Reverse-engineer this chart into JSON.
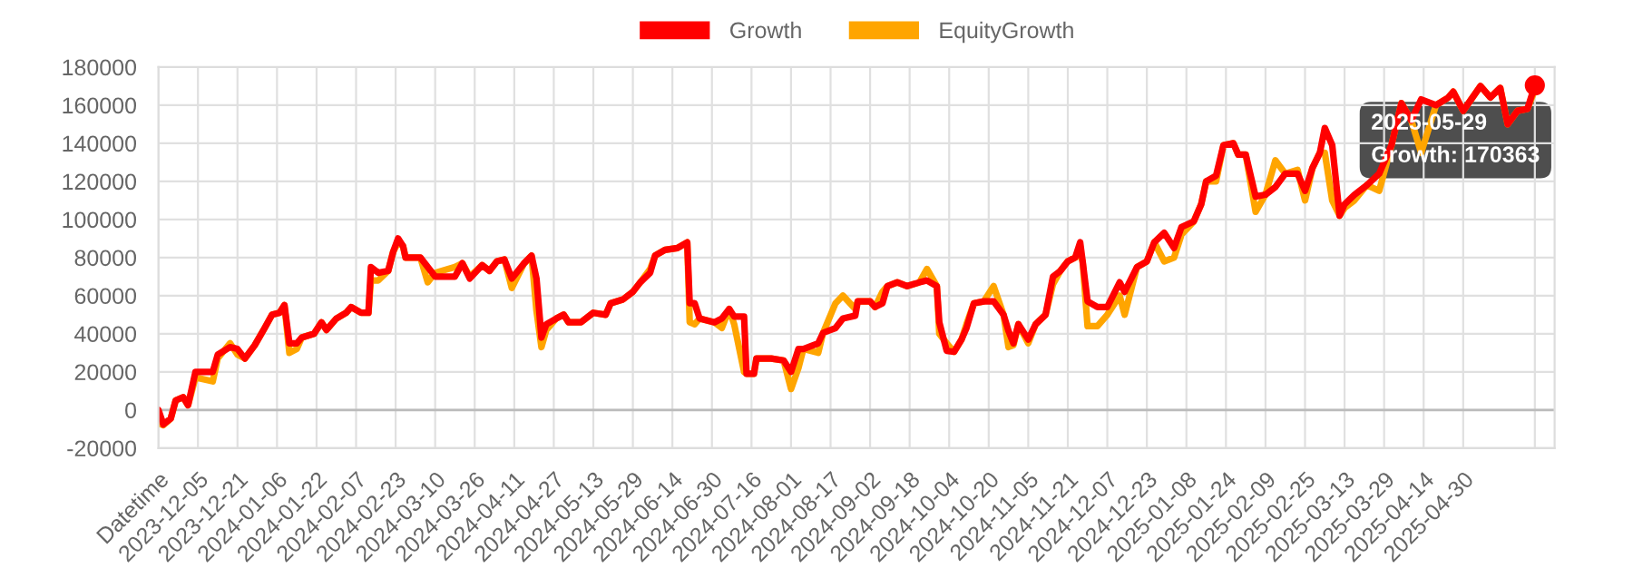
{
  "chart_data": {
    "type": "line",
    "x": [
      "2023-11-19",
      "2023-11-21",
      "2023-11-24",
      "2023-11-26",
      "2023-11-29",
      "2023-12-01",
      "2023-12-04",
      "2023-12-11",
      "2023-12-13",
      "2023-12-18",
      "2023-12-21",
      "2023-12-24",
      "2023-12-28",
      "2024-01-01",
      "2024-01-04",
      "2024-01-07",
      "2024-01-09",
      "2024-01-11",
      "2024-01-14",
      "2024-01-16",
      "2024-01-21",
      "2024-01-24",
      "2024-01-26",
      "2024-01-30",
      "2024-02-03",
      "2024-02-05",
      "2024-02-09",
      "2024-02-12",
      "2024-02-13",
      "2024-02-16",
      "2024-02-20",
      "2024-02-22",
      "2024-02-24",
      "2024-02-26",
      "2024-02-27",
      "2024-03-04",
      "2024-03-07",
      "2024-03-10",
      "2024-03-18",
      "2024-03-21",
      "2024-03-24",
      "2024-03-29",
      "2024-04-01",
      "2024-04-04",
      "2024-04-07",
      "2024-04-10",
      "2024-04-15",
      "2024-04-18",
      "2024-04-20",
      "2024-04-22",
      "2024-04-24",
      "2024-04-28",
      "2024-05-01",
      "2024-05-03",
      "2024-05-08",
      "2024-05-13",
      "2024-05-18",
      "2024-05-20",
      "2024-05-25",
      "2024-05-29",
      "2024-06-01",
      "2024-06-05",
      "2024-06-07",
      "2024-06-11",
      "2024-06-16",
      "2024-06-20",
      "2024-06-21",
      "2024-06-23",
      "2024-06-25",
      "2024-07-01",
      "2024-07-04",
      "2024-07-07",
      "2024-07-09",
      "2024-07-13",
      "2024-07-14",
      "2024-07-17",
      "2024-07-18",
      "2024-07-24",
      "2024-07-29",
      "2024-08-01",
      "2024-08-04",
      "2024-08-06",
      "2024-08-12",
      "2024-08-14",
      "2024-08-19",
      "2024-08-22",
      "2024-08-27",
      "2024-08-28",
      "2024-09-02",
      "2024-09-04",
      "2024-09-07",
      "2024-09-09",
      "2024-09-13",
      "2024-09-17",
      "2024-09-22",
      "2024-09-25",
      "2024-09-29",
      "2024-09-30",
      "2024-10-03",
      "2024-10-06",
      "2024-10-09",
      "2024-10-11",
      "2024-10-14",
      "2024-10-18",
      "2024-10-22",
      "2024-10-26",
      "2024-10-28",
      "2024-10-30",
      "2024-11-01",
      "2024-11-05",
      "2024-11-08",
      "2024-11-12",
      "2024-11-15",
      "2024-11-18",
      "2024-11-21",
      "2024-11-24",
      "2024-11-26",
      "2024-11-27",
      "2024-11-29",
      "2024-12-03",
      "2024-12-07",
      "2024-12-12",
      "2024-12-14",
      "2024-12-19",
      "2024-12-23",
      "2024-12-26",
      "2024-12-30",
      "2025-01-03",
      "2025-01-06",
      "2025-01-11",
      "2025-01-14",
      "2025-01-16",
      "2025-01-20",
      "2025-01-23",
      "2025-01-27",
      "2025-01-29",
      "2025-02-01",
      "2025-02-05",
      "2025-02-09",
      "2025-02-13",
      "2025-02-17",
      "2025-02-22",
      "2025-02-25",
      "2025-02-28",
      "2025-03-03",
      "2025-03-05",
      "2025-03-08",
      "2025-03-11",
      "2025-03-13",
      "2025-03-17",
      "2025-03-22",
      "2025-03-27",
      "2025-04-01",
      "2025-04-05",
      "2025-04-09",
      "2025-04-13",
      "2025-04-19",
      "2025-04-24",
      "2025-04-26",
      "2025-04-30",
      "2025-05-07",
      "2025-05-11",
      "2025-05-15",
      "2025-05-18",
      "2025-05-22",
      "2025-05-26",
      "2025-05-29"
    ],
    "series": [
      {
        "name": "EquityGrowth",
        "color": "#ffa500",
        "values": [
          -7000,
          -8000,
          -4500,
          5000,
          6700,
          2500,
          17000,
          15000,
          27000,
          35000,
          29000,
          27000,
          34000,
          43000,
          50000,
          51000,
          55000,
          30000,
          32000,
          38000,
          40000,
          46000,
          42000,
          48000,
          51000,
          54000,
          51000,
          51000,
          68000,
          68000,
          73000,
          83000,
          88000,
          86000,
          80000,
          80000,
          67000,
          72000,
          75000,
          77000,
          70000,
          76000,
          73000,
          78000,
          79000,
          64000,
          77000,
          81000,
          52000,
          33000,
          42000,
          48000,
          50000,
          46000,
          46000,
          51000,
          50000,
          56000,
          58000,
          62000,
          67000,
          74000,
          81000,
          84000,
          85000,
          88000,
          46000,
          45000,
          48000,
          46000,
          43000,
          53000,
          45000,
          20000,
          19000,
          19000,
          27000,
          27000,
          26000,
          11000,
          22000,
          32000,
          30000,
          40500,
          56000,
          60000,
          53000,
          57000,
          57000,
          54000,
          62000,
          65000,
          67000,
          65000,
          67000,
          74000,
          65000,
          40000,
          35000,
          30500,
          37000,
          45000,
          56000,
          57000,
          65000,
          50000,
          33000,
          34000,
          45000,
          35000,
          45000,
          50000,
          66000,
          73000,
          78000,
          80000,
          82000,
          78000,
          44000,
          44000,
          50000,
          60000,
          50000,
          75000,
          78000,
          88000,
          78000,
          80000,
          92000,
          99000,
          108000,
          120000,
          120000,
          139000,
          140000,
          134000,
          134000,
          104000,
          113000,
          131000,
          124000,
          126000,
          110000,
          127000,
          135000,
          135000,
          110000,
          102000,
          106000,
          110000,
          118000,
          115000,
          139000,
          161000,
          152000,
          135000,
          160000,
          164000,
          167000,
          157000,
          170000,
          164000,
          169000,
          150000,
          157000,
          158000,
          168000
        ]
      },
      {
        "name": "Growth",
        "color": "#ff0000",
        "values": [
          0,
          -7600,
          -4500,
          5000,
          6700,
          2500,
          20000,
          20000,
          29000,
          33000,
          32000,
          27000,
          34000,
          43000,
          50000,
          51000,
          55000,
          35000,
          35000,
          38000,
          40000,
          46000,
          42000,
          48000,
          51000,
          54000,
          51000,
          51000,
          75000,
          72000,
          73000,
          83000,
          90000,
          86000,
          80000,
          80000,
          75000,
          70000,
          70000,
          77000,
          69000,
          76000,
          73000,
          78000,
          79000,
          69000,
          77000,
          81000,
          69000,
          38000,
          45000,
          48000,
          50000,
          46000,
          46000,
          51000,
          50000,
          56000,
          58000,
          62000,
          67000,
          72000,
          81000,
          84000,
          85000,
          88000,
          56000,
          56000,
          48000,
          46000,
          48000,
          53000,
          49000,
          49000,
          19000,
          19000,
          27000,
          27000,
          26000,
          20000,
          32000,
          32000,
          35000,
          40500,
          43000,
          48000,
          49500,
          57000,
          57000,
          54000,
          56000,
          65000,
          67000,
          65000,
          67000,
          68000,
          65000,
          46000,
          31000,
          30500,
          37000,
          43000,
          56000,
          57000,
          57000,
          50000,
          41500,
          35000,
          45000,
          37000,
          45000,
          50000,
          70000,
          73000,
          78000,
          80000,
          88000,
          78000,
          57000,
          54000,
          54000,
          67000,
          62000,
          75000,
          78000,
          88000,
          93000,
          85000,
          96000,
          99000,
          108000,
          120000,
          123000,
          139000,
          140000,
          134000,
          134000,
          112000,
          113000,
          117000,
          124000,
          124000,
          115000,
          127000,
          135000,
          148000,
          139000,
          102000,
          108000,
          113000,
          118000,
          124000,
          139000,
          161000,
          152000,
          163000,
          160000,
          164000,
          167000,
          157000,
          170000,
          164000,
          169000,
          150000,
          157000,
          158000,
          170363
        ]
      }
    ],
    "xlim": [
      "2023-11-19",
      "2025-06-06"
    ],
    "xticks": [
      {
        "value": "2023-11-19",
        "label": "Datetime"
      },
      "2023-12-05",
      "2023-12-21",
      "2024-01-06",
      "2024-01-22",
      "2024-02-07",
      "2024-02-23",
      "2024-03-10",
      "2024-03-26",
      "2024-04-11",
      "2024-04-27",
      "2024-05-13",
      "2024-05-29",
      "2024-06-14",
      "2024-06-30",
      "2024-07-16",
      "2024-08-01",
      "2024-08-17",
      "2024-09-02",
      "2024-09-18",
      "2024-10-04",
      "2024-10-20",
      "2024-11-05",
      "2024-11-21",
      "2024-12-07",
      "2024-12-23",
      "2025-01-08",
      "2025-01-24",
      "2025-02-09",
      "2025-02-25",
      "2025-03-13",
      "2025-03-29",
      "2025-04-14",
      "2025-04-30",
      {
        "value": "2025-05-29",
        "label": null
      }
    ],
    "ylim": [
      -20000,
      180000
    ],
    "yticks": [
      -20000,
      0,
      20000,
      40000,
      60000,
      80000,
      100000,
      120000,
      140000,
      160000,
      180000
    ],
    "grid": true,
    "legend": "top",
    "marker": "none",
    "line_style": "solid",
    "annotations": [
      {
        "text": "2025-05-29\nGrowth: 170363",
        "x": "2025-05-29",
        "y": 170363
      }
    ]
  }
}
